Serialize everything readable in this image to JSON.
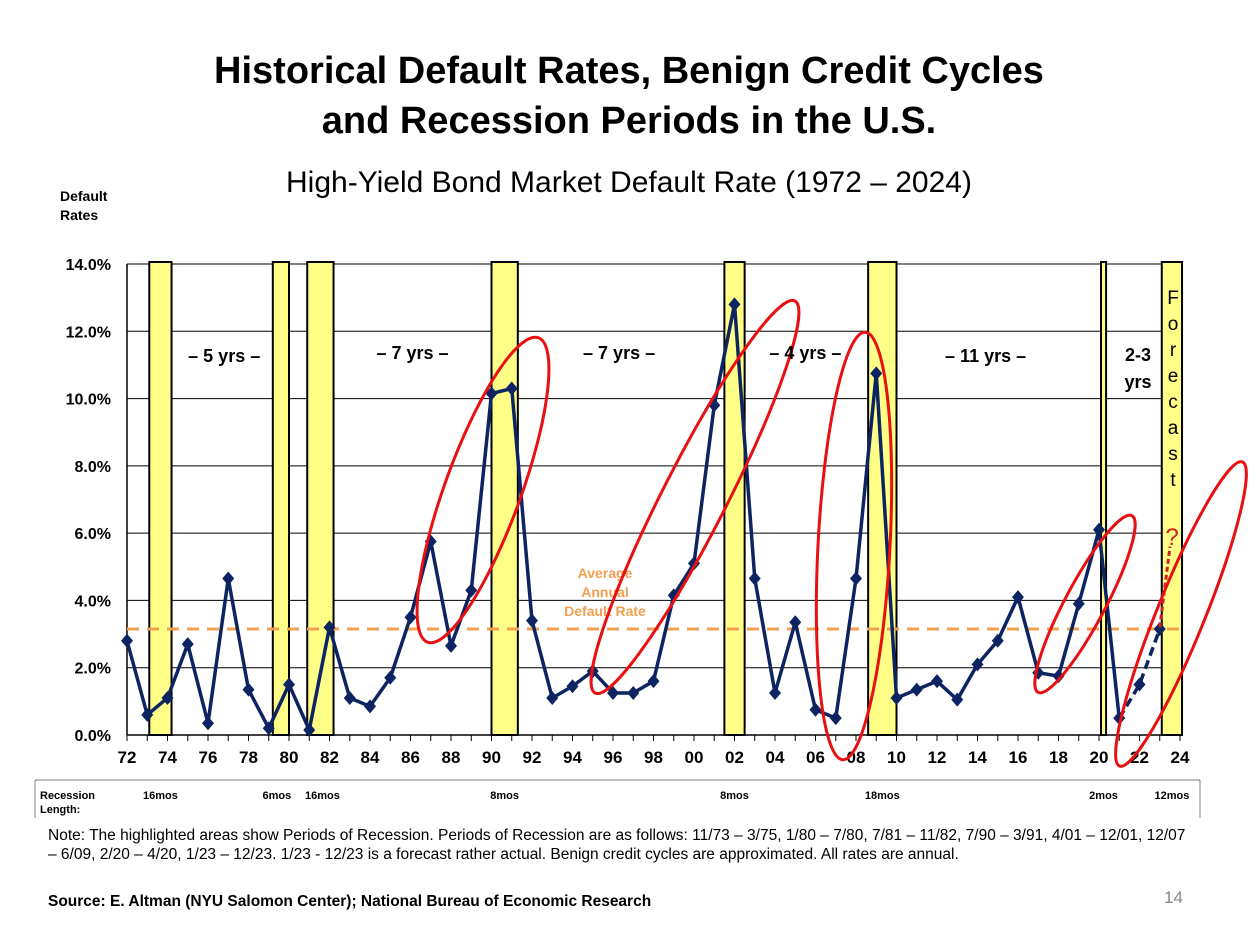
{
  "title_line1": "Historical Default Rates, Benign Credit Cycles",
  "title_line2": "and Recession Periods in the U.S.",
  "chart_data": {
    "type": "line",
    "title": "High-Yield Bond Market Default Rate (1972 – 2024)",
    "ylabel": "Default Rates",
    "ylim": [
      0,
      14
    ],
    "xlim": [
      1972,
      2024
    ],
    "grid": true,
    "y_ticks": [
      "0.0%",
      "2.0%",
      "4.0%",
      "6.0%",
      "8.0%",
      "10.0%",
      "12.0%",
      "14.0%"
    ],
    "x_ticks": [
      "72",
      "74",
      "76",
      "78",
      "80",
      "82",
      "84",
      "86",
      "88",
      "90",
      "92",
      "94",
      "96",
      "98",
      "00",
      "02",
      "04",
      "06",
      "08",
      "10",
      "12",
      "14",
      "16",
      "18",
      "20",
      "22",
      "24"
    ],
    "x": [
      1972,
      1973,
      1974,
      1975,
      1976,
      1977,
      1978,
      1979,
      1980,
      1981,
      1982,
      1983,
      1984,
      1985,
      1986,
      1987,
      1988,
      1989,
      1990,
      1991,
      1992,
      1993,
      1994,
      1995,
      1996,
      1997,
      1998,
      1999,
      2000,
      2001,
      2002,
      2003,
      2004,
      2005,
      2006,
      2007,
      2008,
      2009,
      2010,
      2011,
      2012,
      2013,
      2014,
      2015,
      2016,
      2017,
      2018,
      2019,
      2020,
      2021,
      2022,
      2023
    ],
    "values": [
      2.8,
      0.6,
      1.1,
      2.7,
      0.35,
      4.65,
      1.35,
      0.2,
      1.5,
      0.15,
      3.2,
      1.1,
      0.85,
      1.7,
      3.5,
      5.75,
      2.65,
      4.3,
      10.15,
      10.3,
      3.4,
      1.1,
      1.45,
      1.9,
      1.25,
      1.25,
      1.6,
      4.15,
      5.1,
      9.8,
      12.8,
      4.65,
      1.25,
      3.35,
      0.75,
      0.5,
      4.65,
      10.75,
      1.1,
      1.35,
      1.6,
      1.05,
      2.1,
      2.8,
      4.1,
      1.85,
      1.75,
      3.9,
      6.1,
      0.5,
      1.5,
      3.15
    ],
    "forecast_from": 2021,
    "average": {
      "value": 3.15,
      "label": "Average Annual Default Rate",
      "color": "#F0A050"
    },
    "series_color": "#0C2461",
    "recession_color": "#FFFF88",
    "highlight_color": "#E81010",
    "recessions": [
      {
        "start": 1973.1,
        "end": 1974.2,
        "length": "16mos"
      },
      {
        "start": 1979.2,
        "end": 1980.0,
        "length": "6mos"
      },
      {
        "start": 1980.9,
        "end": 1982.2,
        "length": "16mos"
      },
      {
        "start": 1990.0,
        "end": 1991.3,
        "length": "8mos"
      },
      {
        "start": 2001.5,
        "end": 2002.5,
        "length": "8mos"
      },
      {
        "start": 2008.6,
        "end": 2010.0,
        "length": "18mos"
      },
      {
        "start": 2020.1,
        "end": 2020.35,
        "length": "2mos"
      },
      {
        "start": 2023.1,
        "end": 2024.1,
        "length": "12mos"
      }
    ],
    "recession_length_label": "Recession Length:",
    "cycles": [
      {
        "label": "– 5 yrs –",
        "x": 1976.8,
        "y": 11.2
      },
      {
        "label": "– 7 yrs –",
        "x": 1986.1,
        "y": 11.3
      },
      {
        "label": "– 7 yrs –",
        "x": 1996.3,
        "y": 11.3
      },
      {
        "label": "– 4 yrs –",
        "x": 2005.5,
        "y": 11.3
      },
      {
        "label": "– 11 yrs –",
        "x": 2014.4,
        "y": 11.2
      }
    ],
    "cycle_last": [
      "2-3",
      "yrs"
    ],
    "forecast_label": "Forecast",
    "forecast_mark": "?"
  },
  "note": "Note: The highlighted areas show Periods of Recession. Periods of Recession are as follows: 11/73 – 3/75, 1/80 – 7/80, 7/81 – 11/82, 7/90 – 3/91, 4/01 – 12/01, 12/07 – 6/09, 2/20 – 4/20, 1/23 – 12/23. 1/23 - 12/23 is a forecast rather actual. Benign credit cycles are approximated. All rates are annual.",
  "source": "Source: E. Altman (NYU Salomon Center); National Bureau of Economic Research",
  "page_number": "14"
}
